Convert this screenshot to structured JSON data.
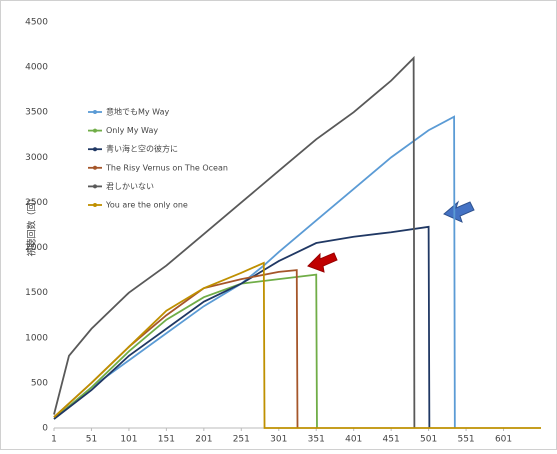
{
  "chart_data": {
    "type": "line",
    "y_label": "視聴回数（回）",
    "xlim": [
      1,
      651
    ],
    "xticks": [
      1,
      51,
      101,
      151,
      201,
      251,
      301,
      351,
      401,
      451,
      501,
      551,
      601
    ],
    "ylim": [
      0,
      4500
    ],
    "yticks": [
      0,
      500,
      1000,
      1500,
      2000,
      2500,
      3000,
      3500,
      4000,
      4500
    ],
    "grid": false,
    "legend": "upper left",
    "series": [
      {
        "name": "意地でもMy Way",
        "color": "#5b9bd5",
        "x": [
          1,
          51,
          101,
          151,
          201,
          251,
          281,
          301,
          351,
          401,
          451,
          501,
          535,
          536
        ],
        "values": [
          100,
          450,
          750,
          1050,
          1350,
          1600,
          1800,
          1950,
          2300,
          2650,
          3000,
          3300,
          3450,
          0
        ]
      },
      {
        "name": "Only My Way",
        "color": "#70ad47",
        "x": [
          1,
          51,
          101,
          151,
          201,
          251,
          301,
          351,
          352
        ],
        "values": [
          100,
          450,
          850,
          1200,
          1450,
          1600,
          1650,
          1700,
          0
        ]
      },
      {
        "name": "青い海と空の彼方に",
        "color": "#203864",
        "x": [
          1,
          51,
          101,
          151,
          201,
          251,
          301,
          351,
          401,
          451,
          501,
          502
        ],
        "values": [
          100,
          420,
          800,
          1100,
          1400,
          1600,
          1850,
          2050,
          2120,
          2170,
          2230,
          0
        ]
      },
      {
        "name": "The Risy Vernus on The Ocean",
        "color": "#a5562a",
        "x": [
          1,
          51,
          101,
          151,
          201,
          251,
          301,
          325,
          326
        ],
        "values": [
          120,
          500,
          900,
          1250,
          1550,
          1650,
          1730,
          1750,
          0
        ]
      },
      {
        "name": "君しかいない",
        "color": "#595959",
        "x": [
          1,
          21,
          51,
          101,
          151,
          201,
          251,
          301,
          351,
          401,
          451,
          481,
          482
        ],
        "values": [
          150,
          800,
          1100,
          1500,
          1800,
          2150,
          2500,
          2850,
          3200,
          3500,
          3850,
          4100,
          0
        ]
      },
      {
        "name": "You are the only one",
        "color": "#bf9000",
        "x": [
          1,
          51,
          101,
          151,
          201,
          251,
          281,
          282,
          651
        ],
        "values": [
          120,
          500,
          900,
          1300,
          1550,
          1720,
          1830,
          0,
          0
        ]
      }
    ]
  }
}
